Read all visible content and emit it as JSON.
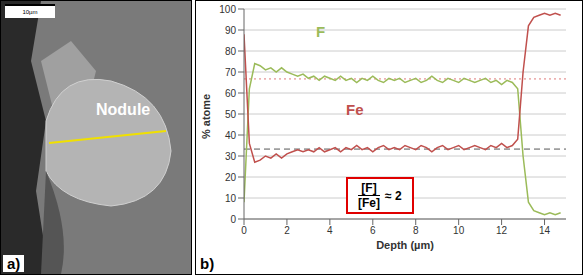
{
  "panel_a": {
    "label": "a)",
    "scale_bar": "10µm",
    "annotation": "Nodule"
  },
  "chart_data": {
    "type": "line",
    "label": "b)",
    "x_label": "Depth (µm)",
    "y_label": "% atome",
    "x": [
      0,
      0.25,
      0.5,
      0.75,
      1,
      1.25,
      1.5,
      1.75,
      2,
      2.25,
      2.5,
      2.75,
      3,
      3.25,
      3.5,
      3.75,
      4,
      4.25,
      4.5,
      4.75,
      5,
      5.25,
      5.5,
      5.75,
      6,
      6.25,
      6.5,
      6.75,
      7,
      7.25,
      7.5,
      7.75,
      8,
      8.25,
      8.5,
      8.75,
      9,
      9.25,
      9.5,
      9.75,
      10,
      10.25,
      10.5,
      10.75,
      11,
      11.25,
      11.5,
      11.75,
      12,
      12.25,
      12.5,
      12.75,
      13,
      13.25,
      13.5,
      13.75,
      14,
      14.25,
      14.5,
      14.75
    ],
    "series": [
      {
        "name": "F",
        "color": "#9bbb59",
        "values": [
          8,
          62,
          74,
          73,
          71,
          72,
          70,
          72,
          70,
          69,
          68,
          69,
          67,
          68,
          66,
          68,
          67,
          66,
          68,
          66,
          67,
          65,
          67,
          66,
          68,
          66,
          65,
          67,
          66,
          67,
          65,
          66,
          67,
          65,
          66,
          68,
          66,
          65,
          67,
          66,
          65,
          67,
          66,
          65,
          66,
          67,
          65,
          66,
          64,
          66,
          65,
          62,
          30,
          8,
          4,
          3,
          2,
          3,
          2,
          3
        ]
      },
      {
        "name": "Fe",
        "color": "#c0504d",
        "values": [
          88,
          36,
          27,
          28,
          30,
          29,
          31,
          29,
          31,
          32,
          33,
          32,
          33,
          32,
          34,
          32,
          33,
          34,
          32,
          34,
          33,
          35,
          33,
          34,
          32,
          34,
          35,
          33,
          34,
          33,
          35,
          34,
          33,
          35,
          34,
          32,
          34,
          35,
          33,
          34,
          35,
          33,
          34,
          35,
          34,
          33,
          35,
          34,
          36,
          34,
          35,
          38,
          70,
          92,
          96,
          97,
          98,
          97,
          98,
          97
        ]
      }
    ],
    "reference_lines": [
      {
        "value": 66.7,
        "color": "#e07a7a",
        "line_style": "dotted"
      },
      {
        "value": 33.3,
        "color": "#555555",
        "line_style": "dashed"
      }
    ],
    "annotation": {
      "numerator": "[F]",
      "denominator": "[Fe]",
      "relation": "≈ 2",
      "color": "#e00000"
    },
    "xlim": [
      0,
      15
    ],
    "xticks": [
      0,
      2,
      4,
      6,
      8,
      10,
      12,
      14
    ],
    "ylim": [
      0,
      100
    ],
    "yticks": [
      0,
      10,
      20,
      30,
      40,
      50,
      60,
      70,
      80,
      90,
      100
    ],
    "grid": true
  }
}
